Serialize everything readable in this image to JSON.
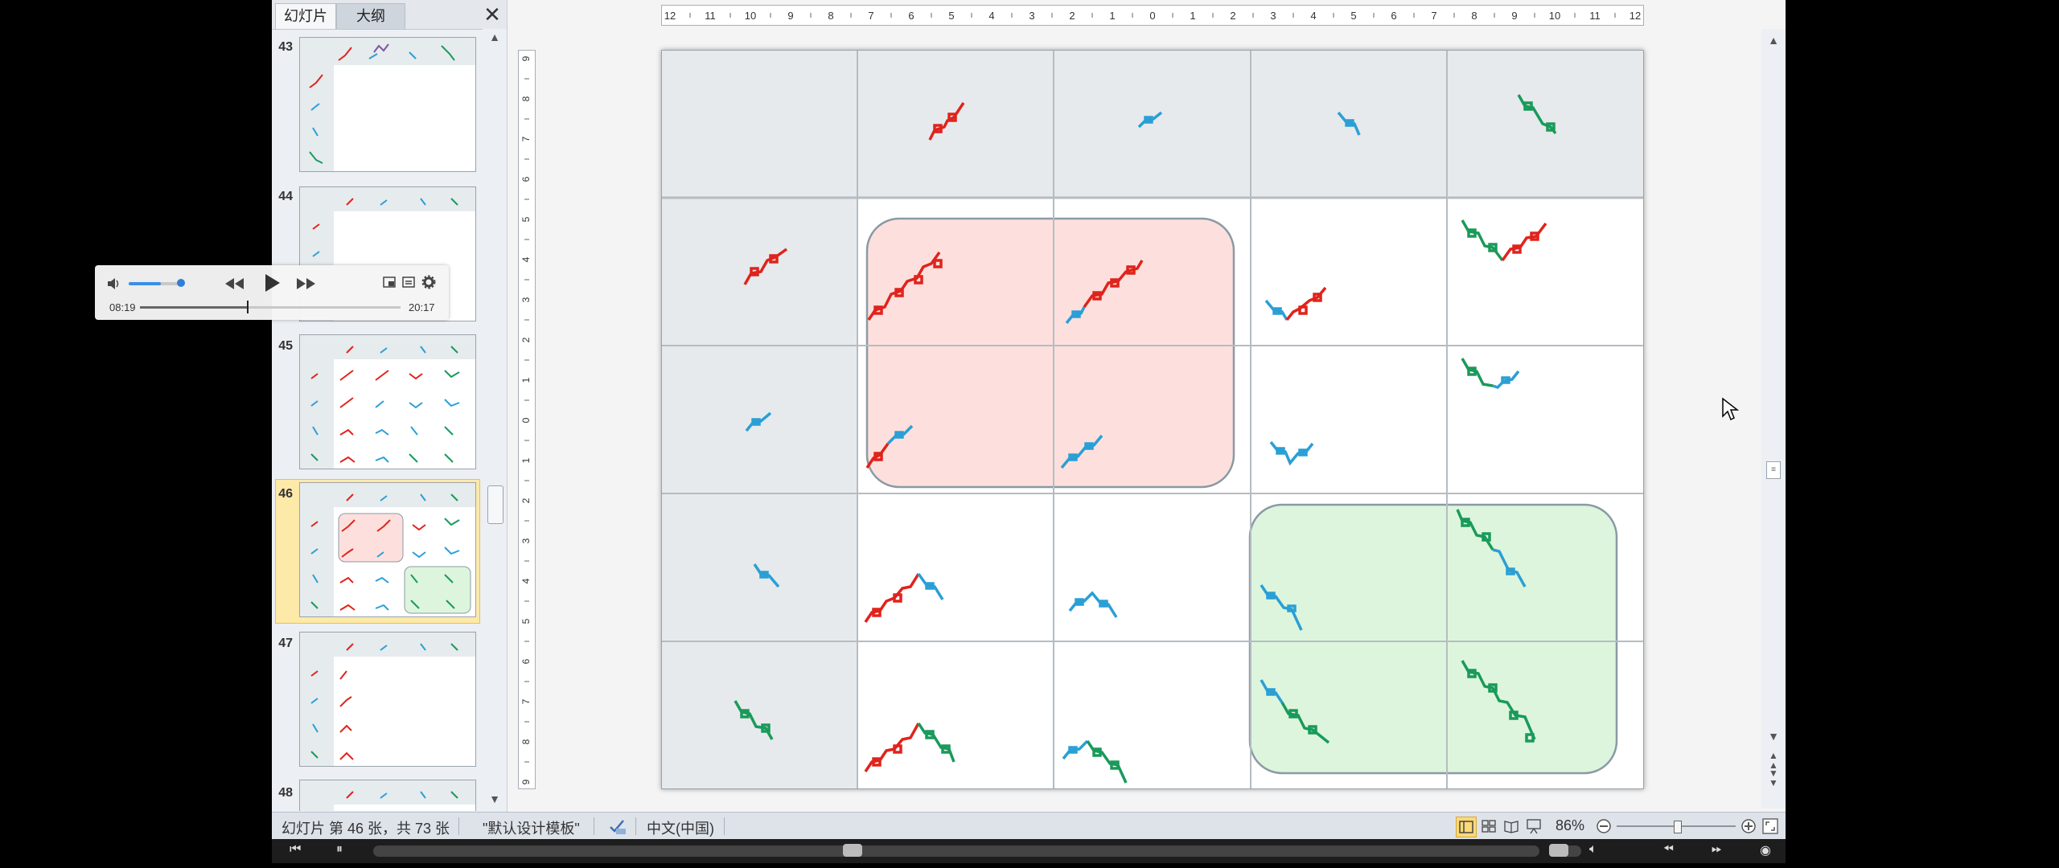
{
  "left_panel": {
    "tabs": [
      "幻灯片",
      "大纲"
    ],
    "close_glyph": "✕",
    "thumbnails": [
      {
        "number": "43",
        "selected": false
      },
      {
        "number": "44",
        "selected": false
      },
      {
        "number": "45",
        "selected": false
      },
      {
        "number": "46",
        "selected": true
      },
      {
        "number": "47",
        "selected": false
      },
      {
        "number": "48",
        "selected": false
      }
    ]
  },
  "ruler": {
    "horizontal_labels": [
      "12",
      "11",
      "10",
      "9",
      "8",
      "7",
      "6",
      "5",
      "4",
      "3",
      "2",
      "1",
      "0",
      "1",
      "2",
      "3",
      "4",
      "5",
      "6",
      "7",
      "8",
      "9",
      "10",
      "11",
      "12"
    ],
    "vertical_labels": [
      "9",
      "8",
      "7",
      "6",
      "5",
      "4",
      "3",
      "2",
      "1",
      "0",
      "1",
      "2",
      "3",
      "4",
      "5",
      "6",
      "7",
      "8",
      "9"
    ]
  },
  "media_player": {
    "current_time": "08:19",
    "total_time": "20:17",
    "volume_level": 0.6,
    "progress_fraction": 0.41
  },
  "status_bar": {
    "slide_info": "幻灯片 第 46 张，共 73 张",
    "theme": "\"默认设计模板\"",
    "language": "中文(中国)",
    "zoom": "86%"
  },
  "slide": {
    "highlight_colors": {
      "red": "#fde0dd",
      "green": "#ddf5dd"
    },
    "line_colors": {
      "red": "#e0231c",
      "blue": "#2a9fd6",
      "green": "#1a9a5a"
    }
  },
  "icons": {
    "volume": "volume-icon",
    "rewind": "rewind-icon",
    "play": "play-icon",
    "forward": "fast-forward-icon",
    "settings": "gear-icon"
  }
}
